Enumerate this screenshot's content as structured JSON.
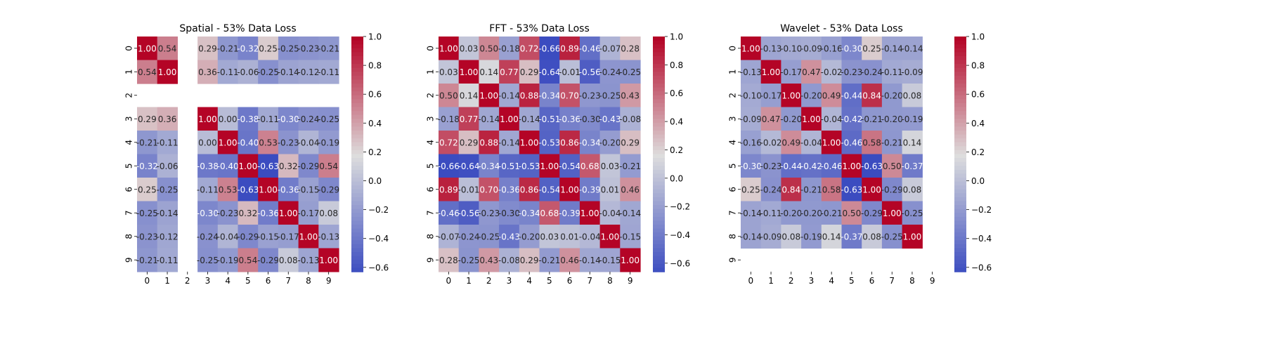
{
  "colormap": {
    "name": "coolwarm",
    "stops": [
      "#3b4cc0",
      "#dddddd",
      "#b40426"
    ]
  },
  "chart_data": [
    {
      "type": "heatmap",
      "title": "Spatial - 53% Data Loss",
      "x_ticks": [
        "0",
        "1",
        "2",
        "3",
        "4",
        "5",
        "6",
        "7",
        "8",
        "9"
      ],
      "y_ticks": [
        "0",
        "1",
        "2",
        "3",
        "4",
        "5",
        "6",
        "7",
        "8",
        "9"
      ],
      "vmin": -0.63,
      "vmax": 1.0,
      "colorbar_ticks": [
        1.0,
        0.8,
        0.6,
        0.4,
        0.2,
        0.0,
        -0.2,
        -0.4,
        -0.6
      ],
      "colorbar_labels": [
        "1.0",
        "0.8",
        "0.6",
        "0.4",
        "0.2",
        "0.0",
        "−0.2",
        "−0.4",
        "−0.6"
      ],
      "values": [
        [
          1.0,
          0.54,
          null,
          0.29,
          -0.21,
          -0.32,
          0.25,
          -0.25,
          -0.23,
          -0.21
        ],
        [
          0.54,
          1.0,
          null,
          0.36,
          -0.11,
          -0.06,
          -0.25,
          -0.14,
          -0.12,
          -0.11
        ],
        [
          null,
          null,
          null,
          null,
          null,
          null,
          null,
          null,
          null,
          null
        ],
        [
          0.29,
          0.36,
          null,
          1.0,
          0.0,
          -0.38,
          -0.11,
          -0.3,
          -0.24,
          -0.25
        ],
        [
          -0.21,
          -0.11,
          null,
          0.0,
          1.0,
          -0.4,
          0.53,
          -0.23,
          -0.04,
          -0.19
        ],
        [
          -0.32,
          -0.06,
          null,
          -0.38,
          -0.4,
          1.0,
          -0.63,
          0.32,
          -0.29,
          0.54
        ],
        [
          0.25,
          -0.25,
          null,
          -0.11,
          0.53,
          -0.63,
          1.0,
          -0.36,
          -0.15,
          -0.29
        ],
        [
          -0.25,
          -0.14,
          null,
          -0.3,
          -0.23,
          0.32,
          -0.36,
          1.0,
          -0.17,
          0.08
        ],
        [
          -0.23,
          -0.12,
          null,
          -0.24,
          -0.04,
          -0.29,
          -0.15,
          -0.17,
          1.0,
          -0.13
        ],
        [
          -0.21,
          -0.11,
          null,
          -0.25,
          -0.19,
          0.54,
          -0.29,
          0.08,
          -0.13,
          1.0
        ]
      ],
      "cell_labels": [
        [
          "1.00",
          "0.54",
          "",
          "0.29",
          "-0.21",
          "-0.32",
          "0.25",
          "-0.25",
          "-0.23",
          "-0.21"
        ],
        [
          "0.54",
          "1.00",
          "",
          "0.36",
          "-0.11",
          "-0.06",
          "-0.25",
          "-0.14",
          "-0.12",
          "-0.11"
        ],
        [
          "",
          "",
          "",
          "",
          "",
          "",
          "",
          "",
          "",
          ""
        ],
        [
          "0.29",
          "0.36",
          "",
          "1.00",
          "0.00",
          "-0.38",
          "-0.11",
          "-0.30",
          "-0.24",
          "-0.25"
        ],
        [
          "-0.21",
          "-0.11",
          "",
          "0.00",
          "1.00",
          "-0.40",
          "0.53",
          "-0.23",
          "-0.04",
          "-0.19"
        ],
        [
          "-0.32",
          "-0.06",
          "",
          "-0.38",
          "-0.40",
          "1.00",
          "-0.63",
          "0.32",
          "-0.29",
          "0.54"
        ],
        [
          "0.25",
          "-0.25",
          "",
          "-0.11",
          "0.53",
          "-0.63",
          "1.00",
          "-0.36",
          "-0.15",
          "-0.29"
        ],
        [
          "-0.25",
          "-0.14",
          "",
          "-0.30",
          "-0.23",
          "0.32",
          "-0.36",
          "1.00",
          "-0.17",
          "0.08"
        ],
        [
          "-0.23",
          "-0.12",
          "",
          "-0.24",
          "-0.04",
          "-0.29",
          "-0.15",
          "-0.17",
          "1.00",
          "-0.13"
        ],
        [
          "-0.21",
          "-0.11",
          "",
          "-0.25",
          "-0.19",
          "0.54",
          "-0.29",
          "0.08",
          "-0.13",
          "1.00"
        ]
      ]
    },
    {
      "type": "heatmap",
      "title": "FFT - 53% Data Loss",
      "x_ticks": [
        "0",
        "1",
        "2",
        "3",
        "4",
        "5",
        "6",
        "7",
        "8",
        "9"
      ],
      "y_ticks": [
        "0",
        "1",
        "2",
        "3",
        "4",
        "5",
        "6",
        "7",
        "8",
        "9"
      ],
      "vmin": -0.66,
      "vmax": 1.0,
      "colorbar_ticks": [
        1.0,
        0.8,
        0.6,
        0.4,
        0.2,
        0.0,
        -0.2,
        -0.4,
        -0.6
      ],
      "colorbar_labels": [
        "1.0",
        "0.8",
        "0.6",
        "0.4",
        "0.2",
        "0.0",
        "−0.2",
        "−0.4",
        "−0.6"
      ],
      "values": [
        [
          1.0,
          0.03,
          0.5,
          -0.18,
          0.72,
          -0.66,
          0.89,
          -0.46,
          -0.07,
          0.28
        ],
        [
          0.03,
          1.0,
          0.14,
          0.77,
          0.29,
          -0.64,
          -0.01,
          -0.56,
          -0.24,
          -0.25
        ],
        [
          0.5,
          0.14,
          1.0,
          -0.14,
          0.88,
          -0.34,
          0.7,
          -0.23,
          -0.25,
          0.43
        ],
        [
          -0.18,
          0.77,
          -0.14,
          1.0,
          -0.14,
          -0.51,
          -0.36,
          -0.3,
          -0.43,
          -0.08
        ],
        [
          0.72,
          0.29,
          0.88,
          -0.14,
          1.0,
          -0.53,
          0.86,
          -0.34,
          -0.2,
          0.29
        ],
        [
          -0.66,
          -0.64,
          -0.34,
          -0.51,
          -0.53,
          1.0,
          -0.54,
          0.68,
          0.03,
          -0.21
        ],
        [
          0.89,
          -0.01,
          0.7,
          -0.36,
          0.86,
          -0.54,
          1.0,
          -0.39,
          0.01,
          0.46
        ],
        [
          -0.46,
          -0.56,
          -0.23,
          -0.3,
          -0.34,
          0.68,
          -0.39,
          1.0,
          -0.04,
          -0.14
        ],
        [
          -0.07,
          -0.24,
          -0.25,
          -0.43,
          -0.2,
          0.03,
          0.01,
          -0.04,
          1.0,
          -0.15
        ],
        [
          0.28,
          -0.25,
          0.43,
          -0.08,
          0.29,
          -0.21,
          0.46,
          -0.14,
          -0.15,
          1.0
        ]
      ],
      "cell_labels": [
        [
          "1.00",
          "0.03",
          "0.50",
          "-0.18",
          "0.72",
          "-0.66",
          "0.89",
          "-0.46",
          "-0.07",
          "0.28"
        ],
        [
          "0.03",
          "1.00",
          "0.14",
          "0.77",
          "0.29",
          "-0.64",
          "-0.01",
          "-0.56",
          "-0.24",
          "-0.25"
        ],
        [
          "0.50",
          "0.14",
          "1.00",
          "-0.14",
          "0.88",
          "-0.34",
          "0.70",
          "-0.23",
          "-0.25",
          "0.43"
        ],
        [
          "-0.18",
          "0.77",
          "-0.14",
          "1.00",
          "-0.14",
          "-0.51",
          "-0.36",
          "-0.30",
          "-0.43",
          "-0.08"
        ],
        [
          "0.72",
          "0.29",
          "0.88",
          "-0.14",
          "1.00",
          "-0.53",
          "0.86",
          "-0.34",
          "-0.20",
          "0.29"
        ],
        [
          "-0.66",
          "-0.64",
          "-0.34",
          "-0.51",
          "-0.53",
          "1.00",
          "-0.54",
          "0.68",
          "0.03",
          "-0.21"
        ],
        [
          "0.89",
          "-0.01",
          "0.70",
          "-0.36",
          "0.86",
          "-0.54",
          "1.00",
          "-0.39",
          "0.01",
          "0.46"
        ],
        [
          "-0.46",
          "-0.56",
          "-0.23",
          "-0.30",
          "-0.34",
          "0.68",
          "-0.39",
          "1.00",
          "-0.04",
          "-0.14"
        ],
        [
          "-0.07",
          "-0.24",
          "-0.25",
          "-0.43",
          "-0.20",
          "0.03",
          "0.01",
          "-0.04",
          "1.00",
          "-0.15"
        ],
        [
          "0.28",
          "-0.25",
          "0.43",
          "-0.08",
          "0.29",
          "-0.21",
          "0.46",
          "-0.14",
          "-0.15",
          "1.00"
        ]
      ]
    },
    {
      "type": "heatmap",
      "title": "Wavelet - 53% Data Loss",
      "x_ticks": [
        "0",
        "1",
        "2",
        "3",
        "4",
        "5",
        "6",
        "7",
        "8",
        "9"
      ],
      "y_ticks": [
        "0",
        "1",
        "2",
        "3",
        "4",
        "5",
        "6",
        "7",
        "8",
        "9"
      ],
      "vmin": -0.63,
      "vmax": 1.0,
      "colorbar_ticks": [
        1.0,
        0.8,
        0.6,
        0.4,
        0.2,
        0.0,
        -0.2,
        -0.4,
        -0.6
      ],
      "colorbar_labels": [
        "1.0",
        "0.8",
        "0.6",
        "0.4",
        "0.2",
        "0.0",
        "−0.2",
        "−0.4",
        "−0.6"
      ],
      "values": [
        [
          1.0,
          -0.13,
          -0.1,
          -0.09,
          -0.16,
          -0.3,
          0.25,
          -0.14,
          -0.14,
          null
        ],
        [
          -0.13,
          1.0,
          -0.17,
          0.47,
          -0.02,
          -0.23,
          -0.24,
          -0.11,
          -0.09,
          null
        ],
        [
          -0.1,
          -0.17,
          1.0,
          -0.2,
          0.49,
          -0.44,
          0.84,
          -0.2,
          0.08,
          null
        ],
        [
          -0.09,
          0.47,
          -0.2,
          1.0,
          -0.04,
          -0.42,
          -0.21,
          -0.2,
          -0.19,
          null
        ],
        [
          -0.16,
          -0.02,
          0.49,
          -0.04,
          1.0,
          -0.46,
          0.58,
          -0.21,
          0.14,
          null
        ],
        [
          -0.3,
          -0.23,
          -0.44,
          -0.42,
          -0.46,
          1.0,
          -0.63,
          0.5,
          -0.37,
          null
        ],
        [
          0.25,
          -0.24,
          0.84,
          -0.21,
          0.58,
          -0.63,
          1.0,
          -0.29,
          0.08,
          null
        ],
        [
          -0.14,
          -0.11,
          -0.2,
          -0.2,
          -0.21,
          0.5,
          -0.29,
          1.0,
          -0.25,
          null
        ],
        [
          -0.14,
          -0.09,
          0.08,
          -0.19,
          0.14,
          -0.37,
          0.08,
          -0.25,
          1.0,
          null
        ],
        [
          null,
          null,
          null,
          null,
          null,
          null,
          null,
          null,
          null,
          null
        ]
      ],
      "cell_labels": [
        [
          "1.00",
          "-0.13",
          "-0.10",
          "-0.09",
          "-0.16",
          "-0.30",
          "0.25",
          "-0.14",
          "-0.14",
          ""
        ],
        [
          "-0.13",
          "1.00",
          "-0.17",
          "0.47",
          "-0.02",
          "-0.23",
          "-0.24",
          "-0.11",
          "-0.09",
          ""
        ],
        [
          "-0.10",
          "-0.17",
          "1.00",
          "-0.20",
          "0.49",
          "-0.44",
          "0.84",
          "-0.20",
          "0.08",
          ""
        ],
        [
          "-0.09",
          "0.47",
          "-0.20",
          "1.00",
          "-0.04",
          "-0.42",
          "-0.21",
          "-0.20",
          "-0.19",
          ""
        ],
        [
          "-0.16",
          "-0.02",
          "0.49",
          "-0.04",
          "1.00",
          "-0.46",
          "0.58",
          "-0.21",
          "0.14",
          ""
        ],
        [
          "-0.30",
          "-0.23",
          "-0.44",
          "-0.42",
          "-0.46",
          "1.00",
          "-0.63",
          "0.50",
          "-0.37",
          ""
        ],
        [
          "0.25",
          "-0.24",
          "0.84",
          "-0.21",
          "0.58",
          "-0.63",
          "1.00",
          "-0.29",
          "0.08",
          ""
        ],
        [
          "-0.14",
          "-0.11",
          "-0.20",
          "-0.20",
          "-0.21",
          "0.50",
          "-0.29",
          "1.00",
          "-0.25",
          ""
        ],
        [
          "-0.14",
          "-0.09",
          "0.08",
          "-0.19",
          "0.14",
          "-0.37",
          "0.08",
          "-0.25",
          "1.00",
          ""
        ],
        [
          "",
          "",
          "",
          "",
          "",
          "",
          "",
          "",
          "",
          ""
        ]
      ]
    }
  ]
}
